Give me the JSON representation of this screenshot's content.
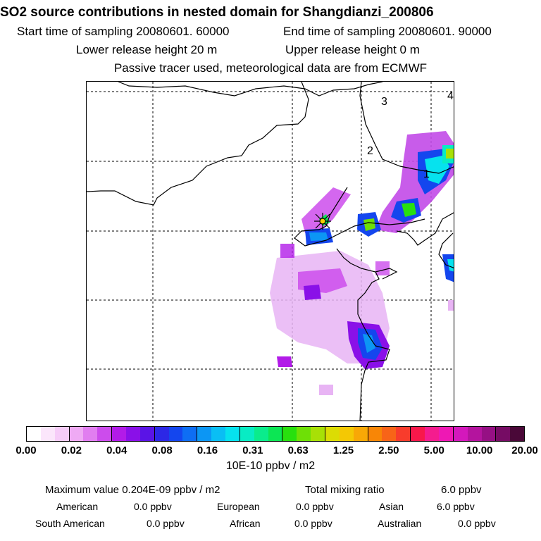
{
  "header": {
    "title": "SO2 source contributions in nested domain for Shangdianzi_200806",
    "start_label": "Start time of sampling 20080601. 60000",
    "end_label": "End time of sampling 20080601. 90000",
    "lower_label": "Lower release height   20 m",
    "upper_label": "Upper release height    0 m",
    "tracer_note": "Passive tracer used, meteorological data are from ECMWF"
  },
  "map": {
    "region_labels": [
      "1",
      "2",
      "3",
      "4"
    ],
    "station_marker": "star-cross-icon"
  },
  "legend": {
    "ticks": [
      "0.00",
      "0.02",
      "0.04",
      "0.08",
      "0.16",
      "0.31",
      "0.63",
      "1.25",
      "2.50",
      "5.00",
      "10.00",
      "20.00"
    ],
    "units": "10E-10 ppbv / m2",
    "colors": [
      "#ffffff",
      "#fbe6fb",
      "#f6ccf8",
      "#efaaf4",
      "#e17ef0",
      "#cc4cec",
      "#b21be8",
      "#8a10e8",
      "#5a14e6",
      "#2c28e6",
      "#1446ee",
      "#0e6ef4",
      "#0c96f4",
      "#0abef4",
      "#06e2ee",
      "#08ecc4",
      "#0aec8c",
      "#0ce654",
      "#28e00e",
      "#6ee006",
      "#a8e006",
      "#dcdc04",
      "#f4c804",
      "#f8a806",
      "#f88606",
      "#f86418",
      "#f83c2c",
      "#f8184a",
      "#f41c8e",
      "#ee18b4",
      "#d418bc",
      "#b4149e",
      "#961084",
      "#760c64",
      "#4a0838"
    ]
  },
  "stats": {
    "max_label": "Maximum value  0.204E-09 ppbv / m2",
    "total_label": "Total mixing ratio",
    "total_value": "6.0 ppbv",
    "regions": [
      {
        "name": "American",
        "value": "0.0 ppbv"
      },
      {
        "name": "European",
        "value": "0.0 ppbv"
      },
      {
        "name": "Asian",
        "value": "6.0 ppbv"
      },
      {
        "name": "South American",
        "value": "0.0 ppbv"
      },
      {
        "name": "African",
        "value": "0.0 ppbv"
      },
      {
        "name": "Australian",
        "value": "0.0 ppbv"
      }
    ]
  }
}
